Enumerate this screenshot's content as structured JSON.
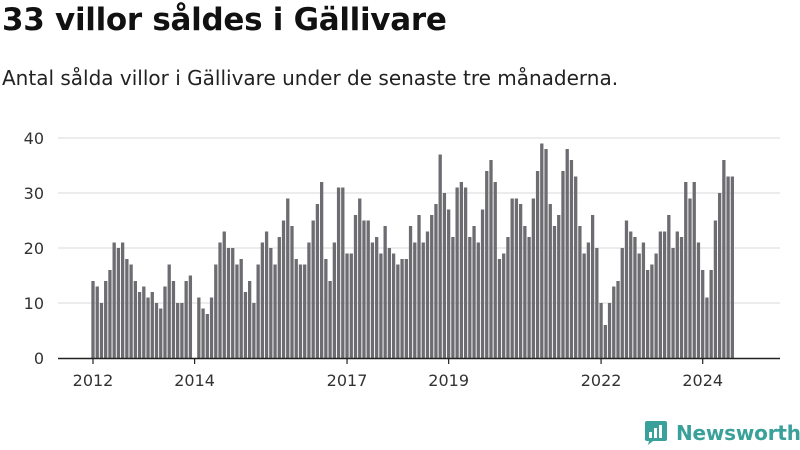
{
  "header": {
    "title": "33 villor såldes i Gällivare",
    "subtitle": "Antal sålda villor i Gällivare under de senaste tre månaderna."
  },
  "brand": {
    "name": "Newsworthy",
    "icon": "newsworthy-logo-icon",
    "color": "#3aa09a"
  },
  "chart_data": {
    "type": "bar",
    "title": "",
    "xlabel": "",
    "ylabel": "",
    "ylim": [
      0,
      40
    ],
    "yticks": [
      0,
      10,
      20,
      30,
      40
    ],
    "grid": true,
    "legend": "none",
    "bar_color": "#6d6c70",
    "highlight_color": "#2a9d8f",
    "x_ticks": [
      {
        "label": "2012",
        "index": 0
      },
      {
        "label": "2014",
        "index": 24
      },
      {
        "label": "2017",
        "index": 60
      },
      {
        "label": "2019",
        "index": 84
      },
      {
        "label": "2022",
        "index": 120
      },
      {
        "label": "2024",
        "index": 144
      }
    ],
    "highlight": {
      "index": 152,
      "label": "33"
    },
    "values": [
      14,
      13,
      10,
      14,
      16,
      21,
      20,
      21,
      18,
      17,
      14,
      12,
      13,
      11,
      12,
      10,
      9,
      13,
      17,
      14,
      10,
      10,
      14,
      15,
      0,
      11,
      9,
      8,
      11,
      17,
      21,
      23,
      20,
      20,
      17,
      18,
      12,
      14,
      10,
      17,
      21,
      23,
      20,
      17,
      22,
      25,
      29,
      24,
      18,
      17,
      17,
      21,
      25,
      28,
      32,
      18,
      14,
      21,
      31,
      31,
      19,
      19,
      26,
      29,
      25,
      25,
      21,
      22,
      19,
      24,
      20,
      19,
      17,
      18,
      18,
      24,
      21,
      26,
      21,
      23,
      26,
      28,
      37,
      30,
      27,
      22,
      31,
      32,
      31,
      22,
      24,
      21,
      27,
      34,
      36,
      32,
      18,
      19,
      22,
      29,
      29,
      28,
      24,
      22,
      29,
      34,
      39,
      38,
      28,
      24,
      26,
      34,
      38,
      36,
      33,
      24,
      19,
      21,
      26,
      20,
      10,
      6,
      10,
      13,
      14,
      20,
      25,
      23,
      22,
      19,
      21,
      16,
      17,
      19,
      23,
      23,
      26,
      20,
      23,
      22,
      32,
      29,
      32,
      21,
      16,
      11,
      16,
      25,
      30,
      36,
      33,
      33
    ]
  }
}
